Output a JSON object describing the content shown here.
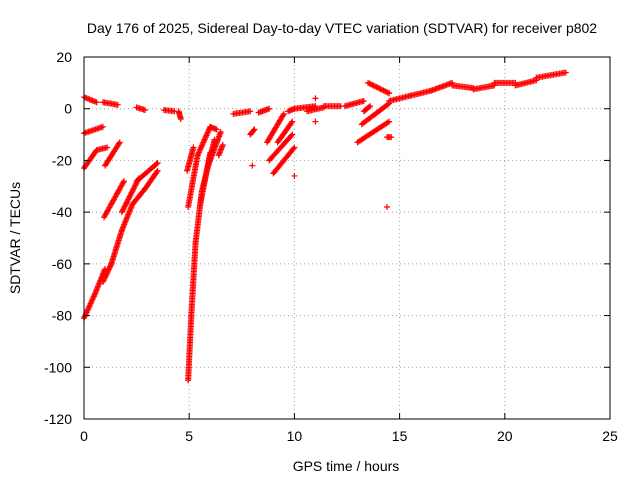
{
  "chart_data": {
    "type": "scatter",
    "title": "Day 176 of 2025, Sidereal Day-to-day VTEC variation (SDTVAR) for receiver p802",
    "xlabel": "GPS time / hours",
    "ylabel": "SDTVAR / TECUs",
    "xlim": [
      0,
      25
    ],
    "ylim": [
      -120,
      20
    ],
    "xticks": [
      0,
      5,
      10,
      15,
      20,
      25
    ],
    "yticks": [
      20,
      0,
      -20,
      -40,
      -60,
      -80,
      -100,
      -120
    ],
    "grid": true,
    "marker": "+",
    "color": "#ff0000",
    "series_segments": [
      {
        "x0": 0.0,
        "y0": 4.5,
        "x1": 0.6,
        "y1": 2.5
      },
      {
        "x0": 0.9,
        "y0": 2.5,
        "x1": 1.6,
        "y1": 1.5
      },
      {
        "x0": 2.5,
        "y0": 0.5,
        "x1": 2.9,
        "y1": -0.5
      },
      {
        "x0": 3.8,
        "y0": -0.5,
        "x1": 4.3,
        "y1": -1
      },
      {
        "x0": 4.5,
        "y0": -1,
        "x1": 4.6,
        "y1": -4
      },
      {
        "x0": 0.0,
        "y0": -9.5,
        "x1": 0.9,
        "y1": -7
      },
      {
        "x0": 0.0,
        "y0": -23,
        "x1": 0.6,
        "y1": -16
      },
      {
        "x0": 0.6,
        "y0": -16,
        "x1": 1.1,
        "y1": -15
      },
      {
        "x0": 1.0,
        "y0": -22,
        "x1": 1.7,
        "y1": -13
      },
      {
        "x0": 0.95,
        "y0": -42,
        "x1": 1.9,
        "y1": -28
      },
      {
        "x0": 1.8,
        "y0": -40,
        "x1": 2.6,
        "y1": -27
      },
      {
        "x0": 2.5,
        "y0": -28,
        "x1": 3.5,
        "y1": -21
      },
      {
        "x0": 0.0,
        "y0": -81,
        "x1": 0.5,
        "y1": -72
      },
      {
        "x0": 0.5,
        "y0": -72,
        "x1": 1.0,
        "y1": -62
      },
      {
        "x0": 0.9,
        "y0": -67,
        "x1": 1.3,
        "y1": -60
      },
      {
        "x0": 1.3,
        "y0": -60,
        "x1": 1.8,
        "y1": -47
      },
      {
        "x0": 1.8,
        "y0": -47,
        "x1": 2.3,
        "y1": -37
      },
      {
        "x0": 2.3,
        "y0": -37,
        "x1": 2.9,
        "y1": -31
      },
      {
        "x0": 2.9,
        "y0": -31,
        "x1": 3.5,
        "y1": -24
      },
      {
        "x0": 4.95,
        "y0": -105,
        "x1": 5.1,
        "y1": -80
      },
      {
        "x0": 5.1,
        "y0": -80,
        "x1": 5.3,
        "y1": -52
      },
      {
        "x0": 5.3,
        "y0": -52,
        "x1": 5.6,
        "y1": -32
      },
      {
        "x0": 5.6,
        "y0": -32,
        "x1": 6.2,
        "y1": -12
      },
      {
        "x0": 5.5,
        "y0": -38,
        "x1": 6.0,
        "y1": -17
      },
      {
        "x0": 5.9,
        "y0": -22,
        "x1": 6.5,
        "y1": -9
      },
      {
        "x0": 4.95,
        "y0": -38,
        "x1": 5.4,
        "y1": -18
      },
      {
        "x0": 5.4,
        "y0": -18,
        "x1": 6.0,
        "y1": -7
      },
      {
        "x0": 6.0,
        "y0": -7,
        "x1": 6.3,
        "y1": -8
      },
      {
        "x0": 4.9,
        "y0": -24,
        "x1": 5.2,
        "y1": -15
      },
      {
        "x0": 6.4,
        "y0": -18,
        "x1": 6.6,
        "y1": -14
      },
      {
        "x0": 7.1,
        "y0": -2,
        "x1": 7.9,
        "y1": -1
      },
      {
        "x0": 8.3,
        "y0": -1.5,
        "x1": 8.8,
        "y1": 0
      },
      {
        "x0": 7.9,
        "y0": -10,
        "x1": 8.1,
        "y1": -8
      },
      {
        "x0": 8.7,
        "y0": -13,
        "x1": 9.5,
        "y1": -2
      },
      {
        "x0": 8.8,
        "y0": -20,
        "x1": 9.9,
        "y1": -10
      },
      {
        "x0": 9.0,
        "y0": -25,
        "x1": 10.0,
        "y1": -15
      },
      {
        "x0": 9.2,
        "y0": -13,
        "x1": 9.9,
        "y1": -5
      },
      {
        "x0": 9.7,
        "y0": -1,
        "x1": 10.0,
        "y1": 0
      },
      {
        "x0": 10.0,
        "y0": 0,
        "x1": 11.0,
        "y1": 1
      },
      {
        "x0": 10.6,
        "y0": -1,
        "x1": 11.4,
        "y1": 0.5
      },
      {
        "x0": 11.4,
        "y0": 1,
        "x1": 12.2,
        "y1": 1
      },
      {
        "x0": 12.4,
        "y0": 1,
        "x1": 13.3,
        "y1": 3
      },
      {
        "x0": 13.3,
        "y0": -1,
        "x1": 13.6,
        "y1": 1
      },
      {
        "x0": 13.0,
        "y0": -13,
        "x1": 14.5,
        "y1": -5
      },
      {
        "x0": 13.2,
        "y0": -6,
        "x1": 14.5,
        "y1": 2
      },
      {
        "x0": 13.5,
        "y0": 10,
        "x1": 14.5,
        "y1": 6
      },
      {
        "x0": 14.4,
        "y0": -11,
        "x1": 14.6,
        "y1": -11
      },
      {
        "x0": 14.5,
        "y0": 3,
        "x1": 15.5,
        "y1": 5
      },
      {
        "x0": 15.5,
        "y0": 5,
        "x1": 16.5,
        "y1": 7
      },
      {
        "x0": 16.5,
        "y0": 7,
        "x1": 17.5,
        "y1": 10
      },
      {
        "x0": 17.5,
        "y0": 9,
        "x1": 18.5,
        "y1": 8
      },
      {
        "x0": 18.5,
        "y0": 7.5,
        "x1": 19.5,
        "y1": 9
      },
      {
        "x0": 19.5,
        "y0": 10,
        "x1": 20.5,
        "y1": 10
      },
      {
        "x0": 20.5,
        "y0": 9,
        "x1": 21.5,
        "y1": 11
      },
      {
        "x0": 21.5,
        "y0": 12,
        "x1": 22.9,
        "y1": 14
      }
    ],
    "outliers": [
      {
        "x": 8.0,
        "y": -22
      },
      {
        "x": 10.0,
        "y": -26
      },
      {
        "x": 11.0,
        "y": 4
      },
      {
        "x": 11.0,
        "y": -5
      },
      {
        "x": 14.4,
        "y": -38
      },
      {
        "x": 14.5,
        "y": 6
      }
    ]
  }
}
